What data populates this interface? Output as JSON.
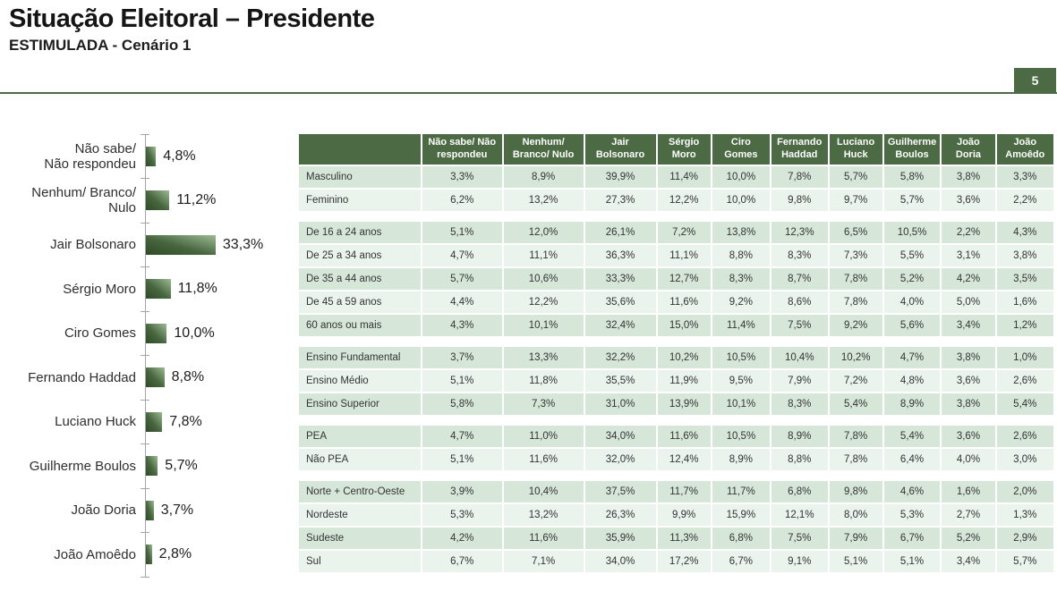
{
  "page": {
    "title": "Situação Eleitoral – Presidente",
    "subtitle": "ESTIMULADA - Cenário 1",
    "page_number": "5"
  },
  "colors": {
    "accent_green": "#4c6a44",
    "table_row_dark": "#d6e7da",
    "table_row_light": "#eaf3ec",
    "bar_gradient_dark": "#2d4c27",
    "bar_gradient_light": "#9cbb93"
  },
  "chart_data": [
    {
      "type": "bar",
      "orientation": "horizontal",
      "title": "",
      "xlabel": "",
      "ylabel": "",
      "xlim": [
        0,
        35
      ],
      "grid": false,
      "legend": false,
      "categories": [
        "Não sabe/\nNão respondeu",
        "Nenhum/ Branco/\nNulo",
        "Jair Bolsonaro",
        "Sérgio Moro",
        "Ciro Gomes",
        "Fernando Haddad",
        "Luciano Huck",
        "Guilherme Boulos",
        "João Doria",
        "João Amoêdo"
      ],
      "values": [
        4.8,
        11.2,
        33.3,
        11.8,
        10.0,
        8.8,
        7.8,
        5.7,
        3.7,
        2.8
      ],
      "value_labels": [
        "4,8%",
        "11,2%",
        "33,3%",
        "11,8%",
        "10,0%",
        "8,8%",
        "7,8%",
        "5,7%",
        "3,7%",
        "2,8%"
      ]
    },
    {
      "type": "table",
      "columns": [
        "Não sabe/ Não respondeu",
        "Nenhum/ Branco/ Nulo",
        "Jair Bolsonaro",
        "Sérgio Moro",
        "Ciro Gomes",
        "Fernando Haddad",
        "Luciano Huck",
        "Guilherme Boulos",
        "João Doria",
        "João Amoêdo"
      ],
      "groups": [
        {
          "rows": [
            {
              "label": "Masculino",
              "values": [
                "3,3%",
                "8,9%",
                "39,9%",
                "11,4%",
                "10,0%",
                "7,8%",
                "5,7%",
                "5,8%",
                "3,8%",
                "3,3%"
              ]
            },
            {
              "label": "Feminino",
              "values": [
                "6,2%",
                "13,2%",
                "27,3%",
                "12,2%",
                "10,0%",
                "9,8%",
                "9,7%",
                "5,7%",
                "3,6%",
                "2,2%"
              ]
            }
          ]
        },
        {
          "rows": [
            {
              "label": "De 16 a 24 anos",
              "values": [
                "5,1%",
                "12,0%",
                "26,1%",
                "7,2%",
                "13,8%",
                "12,3%",
                "6,5%",
                "10,5%",
                "2,2%",
                "4,3%"
              ]
            },
            {
              "label": "De 25 a 34 anos",
              "values": [
                "4,7%",
                "11,1%",
                "36,3%",
                "11,1%",
                "8,8%",
                "8,3%",
                "7,3%",
                "5,5%",
                "3,1%",
                "3,8%"
              ]
            },
            {
              "label": "De 35 a 44 anos",
              "values": [
                "5,7%",
                "10,6%",
                "33,3%",
                "12,7%",
                "8,3%",
                "8,7%",
                "7,8%",
                "5,2%",
                "4,2%",
                "3,5%"
              ]
            },
            {
              "label": "De 45 a 59 anos",
              "values": [
                "4,4%",
                "12,2%",
                "35,6%",
                "11,6%",
                "9,2%",
                "8,6%",
                "7,8%",
                "4,0%",
                "5,0%",
                "1,6%"
              ]
            },
            {
              "label": "60 anos ou mais",
              "values": [
                "4,3%",
                "10,1%",
                "32,4%",
                "15,0%",
                "11,4%",
                "7,5%",
                "9,2%",
                "5,6%",
                "3,4%",
                "1,2%"
              ]
            }
          ]
        },
        {
          "rows": [
            {
              "label": "Ensino Fundamental",
              "values": [
                "3,7%",
                "13,3%",
                "32,2%",
                "10,2%",
                "10,5%",
                "10,4%",
                "10,2%",
                "4,7%",
                "3,8%",
                "1,0%"
              ]
            },
            {
              "label": "Ensino Médio",
              "values": [
                "5,1%",
                "11,8%",
                "35,5%",
                "11,9%",
                "9,5%",
                "7,9%",
                "7,2%",
                "4,8%",
                "3,6%",
                "2,6%"
              ]
            },
            {
              "label": "Ensino Superior",
              "values": [
                "5,8%",
                "7,3%",
                "31,0%",
                "13,9%",
                "10,1%",
                "8,3%",
                "5,4%",
                "8,9%",
                "3,8%",
                "5,4%"
              ]
            }
          ]
        },
        {
          "rows": [
            {
              "label": "PEA",
              "values": [
                "4,7%",
                "11,0%",
                "34,0%",
                "11,6%",
                "10,5%",
                "8,9%",
                "7,8%",
                "5,4%",
                "3,6%",
                "2,6%"
              ]
            },
            {
              "label": "Não PEA",
              "values": [
                "5,1%",
                "11,6%",
                "32,0%",
                "12,4%",
                "8,9%",
                "8,8%",
                "7,8%",
                "6,4%",
                "4,0%",
                "3,0%"
              ]
            }
          ]
        },
        {
          "rows": [
            {
              "label": "Norte + Centro-Oeste",
              "values": [
                "3,9%",
                "10,4%",
                "37,5%",
                "11,7%",
                "11,7%",
                "6,8%",
                "9,8%",
                "4,6%",
                "1,6%",
                "2,0%"
              ]
            },
            {
              "label": "Nordeste",
              "values": [
                "5,3%",
                "13,2%",
                "26,3%",
                "9,9%",
                "15,9%",
                "12,1%",
                "8,0%",
                "5,3%",
                "2,7%",
                "1,3%"
              ]
            },
            {
              "label": "Sudeste",
              "values": [
                "4,2%",
                "11,6%",
                "35,9%",
                "11,3%",
                "6,8%",
                "7,5%",
                "7,9%",
                "6,7%",
                "5,2%",
                "2,9%"
              ]
            },
            {
              "label": "Sul",
              "values": [
                "6,7%",
                "7,1%",
                "34,0%",
                "17,2%",
                "6,7%",
                "9,1%",
                "5,1%",
                "5,1%",
                "3,4%",
                "5,7%"
              ]
            }
          ]
        }
      ]
    }
  ]
}
